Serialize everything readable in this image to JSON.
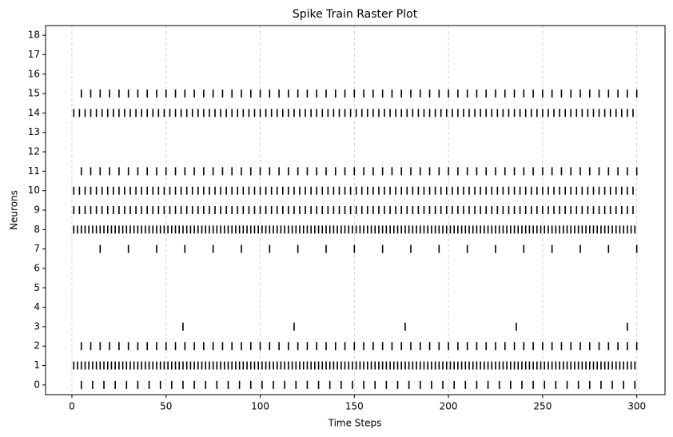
{
  "chart_data": {
    "type": "raster",
    "title": "Spike Train Raster Plot",
    "x_label": "Time Steps",
    "y_label": "Neurons",
    "xlim": [
      -14,
      315
    ],
    "ylim": [
      -0.5,
      18.5
    ],
    "xticks": [
      0,
      50,
      100,
      150,
      200,
      250,
      300
    ],
    "yticks": [
      0,
      1,
      2,
      3,
      4,
      5,
      6,
      7,
      8,
      9,
      10,
      11,
      12,
      13,
      14,
      15,
      16,
      17,
      18
    ],
    "grid_axis": "x",
    "color": "#000000",
    "grid_color": "#cccccc",
    "spikes": [
      {
        "neuron": 0,
        "times": [
          5,
          11,
          17,
          23,
          29,
          35,
          41,
          47,
          53,
          59,
          65,
          71,
          77,
          83,
          89,
          95,
          101,
          107,
          113,
          119,
          125,
          131,
          137,
          143,
          149,
          155,
          161,
          167,
          173,
          179,
          185,
          191,
          197,
          203,
          209,
          215,
          221,
          227,
          233,
          239,
          245,
          251,
          257,
          263,
          269,
          275,
          281,
          287,
          293,
          299
        ]
      },
      {
        "neuron": 1,
        "times": [
          1,
          3,
          5,
          7,
          9,
          11,
          13,
          15,
          17,
          19,
          21,
          23,
          25,
          27,
          29,
          31,
          33,
          35,
          37,
          39,
          41,
          43,
          45,
          47,
          49,
          51,
          53,
          55,
          57,
          59,
          61,
          63,
          65,
          67,
          69,
          71,
          73,
          75,
          77,
          79,
          81,
          83,
          85,
          87,
          89,
          91,
          93,
          95,
          97,
          99,
          101,
          103,
          105,
          107,
          109,
          111,
          113,
          115,
          117,
          119,
          121,
          123,
          125,
          127,
          129,
          131,
          133,
          135,
          137,
          139,
          141,
          143,
          145,
          147,
          149,
          151,
          153,
          155,
          157,
          159,
          161,
          163,
          165,
          167,
          169,
          171,
          173,
          175,
          177,
          179,
          181,
          183,
          185,
          187,
          189,
          191,
          193,
          195,
          197,
          199,
          201,
          203,
          205,
          207,
          209,
          211,
          213,
          215,
          217,
          219,
          221,
          223,
          225,
          227,
          229,
          231,
          233,
          235,
          237,
          239,
          241,
          243,
          245,
          247,
          249,
          251,
          253,
          255,
          257,
          259,
          261,
          263,
          265,
          267,
          269,
          271,
          273,
          275,
          277,
          279,
          281,
          283,
          285,
          287,
          289,
          291,
          293,
          295,
          297,
          299
        ]
      },
      {
        "neuron": 2,
        "times": [
          5,
          10,
          15,
          20,
          25,
          30,
          35,
          40,
          45,
          50,
          55,
          60,
          65,
          70,
          75,
          80,
          85,
          90,
          95,
          100,
          105,
          110,
          115,
          120,
          125,
          130,
          135,
          140,
          145,
          150,
          155,
          160,
          165,
          170,
          175,
          180,
          185,
          190,
          195,
          200,
          205,
          210,
          215,
          220,
          225,
          230,
          235,
          240,
          245,
          250,
          255,
          260,
          265,
          270,
          275,
          280,
          285,
          290,
          295,
          300
        ]
      },
      {
        "neuron": 3,
        "times": [
          59,
          118,
          177,
          236,
          295
        ]
      },
      {
        "neuron": 7,
        "times": [
          15,
          30,
          45,
          60,
          75,
          90,
          105,
          120,
          135,
          150,
          165,
          180,
          195,
          210,
          225,
          240,
          255,
          270,
          285,
          300
        ]
      },
      {
        "neuron": 8,
        "times": [
          1,
          3,
          5,
          7,
          9,
          11,
          13,
          15,
          17,
          19,
          21,
          23,
          25,
          27,
          29,
          31,
          33,
          35,
          37,
          39,
          41,
          43,
          45,
          47,
          49,
          51,
          53,
          55,
          57,
          59,
          61,
          63,
          65,
          67,
          69,
          71,
          73,
          75,
          77,
          79,
          81,
          83,
          85,
          87,
          89,
          91,
          93,
          95,
          97,
          99,
          101,
          103,
          105,
          107,
          109,
          111,
          113,
          115,
          117,
          119,
          121,
          123,
          125,
          127,
          129,
          131,
          133,
          135,
          137,
          139,
          141,
          143,
          145,
          147,
          149,
          151,
          153,
          155,
          157,
          159,
          161,
          163,
          165,
          167,
          169,
          171,
          173,
          175,
          177,
          179,
          181,
          183,
          185,
          187,
          189,
          191,
          193,
          195,
          197,
          199,
          201,
          203,
          205,
          207,
          209,
          211,
          213,
          215,
          217,
          219,
          221,
          223,
          225,
          227,
          229,
          231,
          233,
          235,
          237,
          239,
          241,
          243,
          245,
          247,
          249,
          251,
          253,
          255,
          257,
          259,
          261,
          263,
          265,
          267,
          269,
          271,
          273,
          275,
          277,
          279,
          281,
          283,
          285,
          287,
          289,
          291,
          293,
          295,
          297,
          299
        ]
      },
      {
        "neuron": 9,
        "times": [
          1,
          4,
          7,
          10,
          13,
          16,
          19,
          22,
          25,
          28,
          31,
          34,
          37,
          40,
          43,
          46,
          49,
          52,
          55,
          58,
          61,
          64,
          67,
          70,
          73,
          76,
          79,
          82,
          85,
          88,
          91,
          94,
          97,
          100,
          103,
          106,
          109,
          112,
          115,
          118,
          121,
          124,
          127,
          130,
          133,
          136,
          139,
          142,
          145,
          148,
          151,
          154,
          157,
          160,
          163,
          166,
          169,
          172,
          175,
          178,
          181,
          184,
          187,
          190,
          193,
          196,
          199,
          202,
          205,
          208,
          211,
          214,
          217,
          220,
          223,
          226,
          229,
          232,
          235,
          238,
          241,
          244,
          247,
          250,
          253,
          256,
          259,
          262,
          265,
          268,
          271,
          274,
          277,
          280,
          283,
          286,
          289,
          292,
          295,
          298
        ]
      },
      {
        "neuron": 10,
        "times": [
          1,
          4,
          7,
          10,
          13,
          16,
          19,
          22,
          25,
          28,
          31,
          34,
          37,
          40,
          43,
          46,
          49,
          52,
          55,
          58,
          61,
          64,
          67,
          70,
          73,
          76,
          79,
          82,
          85,
          88,
          91,
          94,
          97,
          100,
          103,
          106,
          109,
          112,
          115,
          118,
          121,
          124,
          127,
          130,
          133,
          136,
          139,
          142,
          145,
          148,
          151,
          154,
          157,
          160,
          163,
          166,
          169,
          172,
          175,
          178,
          181,
          184,
          187,
          190,
          193,
          196,
          199,
          202,
          205,
          208,
          211,
          214,
          217,
          220,
          223,
          226,
          229,
          232,
          235,
          238,
          241,
          244,
          247,
          250,
          253,
          256,
          259,
          262,
          265,
          268,
          271,
          274,
          277,
          280,
          283,
          286,
          289,
          292,
          295,
          298
        ]
      },
      {
        "neuron": 11,
        "times": [
          5,
          10,
          15,
          20,
          25,
          30,
          35,
          40,
          45,
          50,
          55,
          60,
          65,
          70,
          75,
          80,
          85,
          90,
          95,
          100,
          105,
          110,
          115,
          120,
          125,
          130,
          135,
          140,
          145,
          150,
          155,
          160,
          165,
          170,
          175,
          180,
          185,
          190,
          195,
          200,
          205,
          210,
          215,
          220,
          225,
          230,
          235,
          240,
          245,
          250,
          255,
          260,
          265,
          270,
          275,
          280,
          285,
          290,
          295,
          300
        ]
      },
      {
        "neuron": 14,
        "times": [
          1,
          4,
          7,
          10,
          13,
          16,
          19,
          22,
          25,
          28,
          31,
          34,
          37,
          40,
          43,
          46,
          49,
          52,
          55,
          58,
          61,
          64,
          67,
          70,
          73,
          76,
          79,
          82,
          85,
          88,
          91,
          94,
          97,
          100,
          103,
          106,
          109,
          112,
          115,
          118,
          121,
          124,
          127,
          130,
          133,
          136,
          139,
          142,
          145,
          148,
          151,
          154,
          157,
          160,
          163,
          166,
          169,
          172,
          175,
          178,
          181,
          184,
          187,
          190,
          193,
          196,
          199,
          202,
          205,
          208,
          211,
          214,
          217,
          220,
          223,
          226,
          229,
          232,
          235,
          238,
          241,
          244,
          247,
          250,
          253,
          256,
          259,
          262,
          265,
          268,
          271,
          274,
          277,
          280,
          283,
          286,
          289,
          292,
          295,
          298
        ]
      },
      {
        "neuron": 15,
        "times": [
          5,
          10,
          15,
          20,
          25,
          30,
          35,
          40,
          45,
          50,
          55,
          60,
          65,
          70,
          75,
          80,
          85,
          90,
          95,
          100,
          105,
          110,
          115,
          120,
          125,
          130,
          135,
          140,
          145,
          150,
          155,
          160,
          165,
          170,
          175,
          180,
          185,
          190,
          195,
          200,
          205,
          210,
          215,
          220,
          225,
          230,
          235,
          240,
          245,
          250,
          255,
          260,
          265,
          270,
          275,
          280,
          285,
          290,
          295,
          300
        ]
      }
    ]
  }
}
